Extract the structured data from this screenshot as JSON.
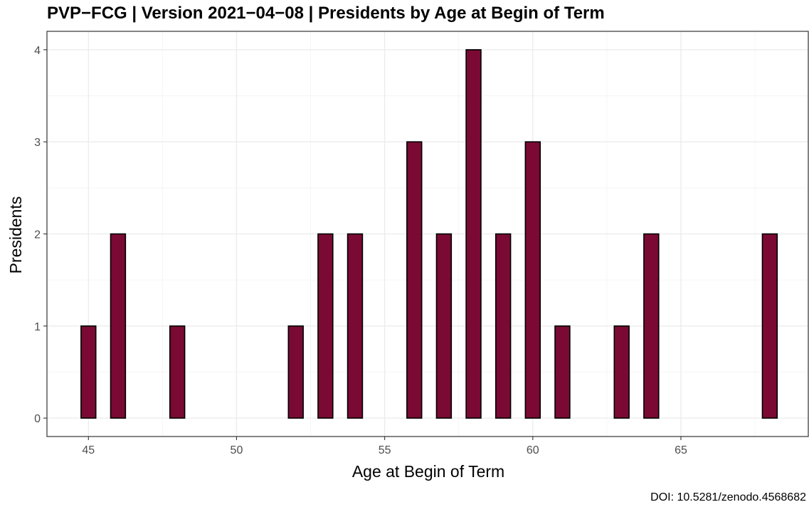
{
  "chart_data": {
    "type": "bar",
    "title": "PVP−FCG | Version 2021−04−08 | Presidents by Age at Begin of Term",
    "xlabel": "Age at Begin of Term",
    "ylabel": "Presidents",
    "caption": "DOI: 10.5281/zenodo.4568682",
    "x": [
      45,
      46,
      48,
      52,
      53,
      54,
      56,
      57,
      58,
      59,
      60,
      61,
      63,
      64,
      68
    ],
    "values": [
      1,
      2,
      1,
      1,
      2,
      2,
      3,
      2,
      4,
      2,
      3,
      1,
      1,
      2,
      2
    ],
    "xlim": [
      43.6,
      69.3
    ],
    "ylim": [
      -0.2,
      4.2
    ],
    "x_ticks": [
      45,
      50,
      55,
      60,
      65
    ],
    "y_ticks": [
      0,
      1,
      2,
      3,
      4
    ],
    "bar_color": "#7a0a34",
    "bar_outline": "#000000",
    "grid": true,
    "legend": "none",
    "theme": "bw"
  }
}
